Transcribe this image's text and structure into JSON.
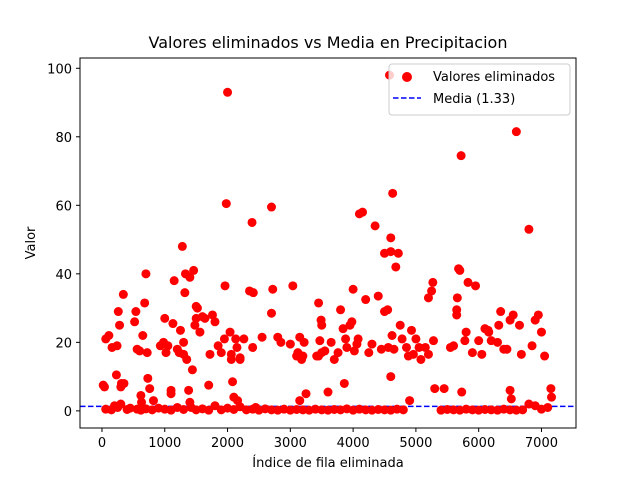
{
  "chart_data": {
    "type": "scatter",
    "title": "Valores eliminados vs Media en Precipitacion",
    "xlabel": "Índice de fila eliminada",
    "ylabel": "Valor",
    "xlim": [
      -350,
      7550
    ],
    "ylim": [
      -5,
      103
    ],
    "xticks": [
      0,
      1000,
      2000,
      3000,
      4000,
      5000,
      6000,
      7000
    ],
    "yticks": [
      0,
      20,
      40,
      60,
      80,
      100
    ],
    "grid": false,
    "legend_position": "top-right",
    "colors": {
      "points": "#ff0000",
      "mean_line": "#0000ff"
    },
    "series": [
      {
        "name": "Valores eliminados",
        "marker": "circle",
        "points": [
          [
            20,
            7.5
          ],
          [
            40,
            7
          ],
          [
            60,
            21
          ],
          [
            110,
            22
          ],
          [
            160,
            18.5
          ],
          [
            230,
            10.5
          ],
          [
            260,
            29
          ],
          [
            280,
            25
          ],
          [
            240,
            19
          ],
          [
            300,
            7
          ],
          [
            310,
            8
          ],
          [
            340,
            34
          ],
          [
            350,
            8
          ],
          [
            60,
            0.5
          ],
          [
            150,
            0.3
          ],
          [
            200,
            1.5
          ],
          [
            250,
            1.0
          ],
          [
            300,
            2.0
          ],
          [
            400,
            0.4
          ],
          [
            450,
            0.8
          ],
          [
            520,
            26
          ],
          [
            540,
            29
          ],
          [
            560,
            18
          ],
          [
            600,
            17.5
          ],
          [
            620,
            4.5
          ],
          [
            630,
            2.5
          ],
          [
            650,
            22
          ],
          [
            680,
            31.5
          ],
          [
            700,
            40
          ],
          [
            720,
            17
          ],
          [
            730,
            9.5
          ],
          [
            760,
            6.5
          ],
          [
            820,
            3
          ],
          [
            560,
            0.5
          ],
          [
            620,
            0.2
          ],
          [
            700,
            0.6
          ],
          [
            800,
            0.3
          ],
          [
            900,
            0.8
          ],
          [
            930,
            19
          ],
          [
            980,
            20
          ],
          [
            1000,
            27
          ],
          [
            1020,
            17
          ],
          [
            1050,
            19
          ],
          [
            1100,
            5
          ],
          [
            1100,
            6
          ],
          [
            1150,
            38
          ],
          [
            1130,
            25.5
          ],
          [
            1200,
            18
          ],
          [
            1230,
            17
          ],
          [
            1250,
            23.5
          ],
          [
            1280,
            48
          ],
          [
            1300,
            20
          ],
          [
            1300,
            16.5
          ],
          [
            1330,
            40
          ],
          [
            1320,
            34.5
          ],
          [
            1350,
            15
          ],
          [
            1380,
            6
          ],
          [
            1400,
            39
          ],
          [
            1420,
            1
          ],
          [
            1440,
            12
          ],
          [
            1460,
            41
          ],
          [
            1480,
            25
          ],
          [
            1500,
            27
          ],
          [
            1500,
            30.5
          ],
          [
            1520,
            30
          ],
          [
            1560,
            23
          ],
          [
            1600,
            27.5
          ],
          [
            1640,
            27
          ],
          [
            1700,
            7.5
          ],
          [
            1720,
            16.5
          ],
          [
            1760,
            28
          ],
          [
            1800,
            26
          ],
          [
            1850,
            19
          ],
          [
            1900,
            17
          ],
          [
            1950,
            21
          ],
          [
            1960,
            36.5
          ],
          [
            1980,
            60.5
          ],
          [
            2000,
            93
          ],
          [
            2040,
            23
          ],
          [
            2060,
            15
          ],
          [
            2060,
            16.5
          ],
          [
            2080,
            8.5
          ],
          [
            2100,
            4
          ],
          [
            2130,
            21
          ],
          [
            2150,
            18.5
          ],
          [
            2160,
            3
          ],
          [
            2200,
            15.5
          ],
          [
            2200,
            15
          ],
          [
            2260,
            21
          ],
          [
            2350,
            35
          ],
          [
            2390,
            55
          ],
          [
            2410,
            34.5
          ],
          [
            2400,
            18.5
          ],
          [
            2450,
            1
          ],
          [
            2550,
            21.5
          ],
          [
            2700,
            59.5
          ],
          [
            2720,
            35.5
          ],
          [
            2700,
            28.5
          ],
          [
            2800,
            21.5
          ],
          [
            2850,
            20
          ],
          [
            3000,
            19.5
          ],
          [
            3040,
            36.5
          ],
          [
            3100,
            16
          ],
          [
            3120,
            17
          ],
          [
            3150,
            21.5
          ],
          [
            3180,
            15
          ],
          [
            3200,
            16
          ],
          [
            3220,
            20
          ],
          [
            3250,
            5
          ],
          [
            3150,
            3
          ],
          [
            3450,
            31.5
          ],
          [
            3470,
            20.5
          ],
          [
            3490,
            26.5
          ],
          [
            3500,
            25
          ],
          [
            3420,
            16
          ],
          [
            3450,
            16
          ],
          [
            3500,
            17
          ],
          [
            3550,
            17.5
          ],
          [
            3600,
            5.5
          ],
          [
            3650,
            20
          ],
          [
            3700,
            15
          ],
          [
            3760,
            17
          ],
          [
            3800,
            29.5
          ],
          [
            3840,
            24
          ],
          [
            3860,
            8
          ],
          [
            3880,
            21
          ],
          [
            3900,
            18.5
          ],
          [
            3950,
            25
          ],
          [
            3980,
            26
          ],
          [
            4000,
            35.5
          ],
          [
            4020,
            17.5
          ],
          [
            4060,
            19.5
          ],
          [
            4080,
            21
          ],
          [
            4100,
            57.5
          ],
          [
            4150,
            58
          ],
          [
            4200,
            32.5
          ],
          [
            4250,
            17
          ],
          [
            4300,
            19.5
          ],
          [
            4350,
            54
          ],
          [
            4400,
            33.5
          ],
          [
            4450,
            18
          ],
          [
            4500,
            29
          ],
          [
            4500,
            46
          ],
          [
            4550,
            29.5
          ],
          [
            4560,
            18.5
          ],
          [
            4600,
            46.5
          ],
          [
            4600,
            10
          ],
          [
            4580,
            98
          ],
          [
            4630,
            63.5
          ],
          [
            4600,
            50.5
          ],
          [
            4620,
            22
          ],
          [
            4650,
            18
          ],
          [
            4680,
            42
          ],
          [
            4720,
            46
          ],
          [
            4750,
            25
          ],
          [
            4780,
            21
          ],
          [
            4850,
            18.5
          ],
          [
            4880,
            16
          ],
          [
            4930,
            23.5
          ],
          [
            4960,
            16.5
          ],
          [
            5000,
            21
          ],
          [
            5050,
            18.5
          ],
          [
            5080,
            15
          ],
          [
            4900,
            3
          ],
          [
            5150,
            18.5
          ],
          [
            5200,
            16.5
          ],
          [
            5200,
            33
          ],
          [
            5250,
            35
          ],
          [
            5270,
            37.5
          ],
          [
            5280,
            20.5
          ],
          [
            5300,
            6.5
          ],
          [
            5450,
            6.5
          ],
          [
            5550,
            18.5
          ],
          [
            5600,
            19
          ],
          [
            5650,
            28
          ],
          [
            5650,
            29.5
          ],
          [
            5660,
            33
          ],
          [
            5680,
            41.5
          ],
          [
            5700,
            41
          ],
          [
            5720,
            74.5
          ],
          [
            5730,
            5.5
          ],
          [
            5780,
            20.5
          ],
          [
            5800,
            23
          ],
          [
            5830,
            37.5
          ],
          [
            5900,
            17
          ],
          [
            5950,
            36.5
          ],
          [
            6000,
            20.5
          ],
          [
            6050,
            16.5
          ],
          [
            6100,
            24
          ],
          [
            6150,
            23.5
          ],
          [
            6200,
            20.5
          ],
          [
            6160,
            23
          ],
          [
            6300,
            20
          ],
          [
            6320,
            25
          ],
          [
            6350,
            29
          ],
          [
            6400,
            18
          ],
          [
            6450,
            18
          ],
          [
            6500,
            26.5
          ],
          [
            6520,
            3.5
          ],
          [
            6550,
            28
          ],
          [
            6500,
            6
          ],
          [
            6600,
            81.5
          ],
          [
            6650,
            25
          ],
          [
            6680,
            16.5
          ],
          [
            6800,
            53
          ],
          [
            6850,
            19
          ],
          [
            6900,
            26.5
          ],
          [
            6950,
            28
          ],
          [
            7000,
            23
          ],
          [
            7050,
            16
          ],
          [
            7150,
            6.5
          ],
          [
            7160,
            4
          ],
          [
            6800,
            2
          ],
          [
            6900,
            1.5
          ],
          [
            7000,
            0.5
          ],
          [
            7100,
            1
          ],
          [
            6700,
            0.3
          ],
          [
            1000,
            0.5
          ],
          [
            1100,
            0.2
          ],
          [
            1200,
            1.0
          ],
          [
            1300,
            0.4
          ],
          [
            1400,
            2.5
          ],
          [
            1500,
            0.3
          ],
          [
            1600,
            0.6
          ],
          [
            1700,
            0.2
          ],
          [
            1800,
            1.5
          ],
          [
            1900,
            0.3
          ],
          [
            2000,
            0.8
          ],
          [
            2100,
            0.4
          ],
          [
            2200,
            1.2
          ],
          [
            2300,
            0.3
          ],
          [
            2400,
            0.5
          ],
          [
            2500,
            0.2
          ],
          [
            2600,
            0.6
          ],
          [
            2700,
            0.3
          ],
          [
            2800,
            0.2
          ],
          [
            2900,
            0.5
          ],
          [
            3000,
            0.2
          ],
          [
            3100,
            0.4
          ],
          [
            3200,
            0.3
          ],
          [
            3300,
            0.2
          ],
          [
            3400,
            0.5
          ],
          [
            3500,
            0.3
          ],
          [
            3600,
            0.2
          ],
          [
            3700,
            0.4
          ],
          [
            3800,
            0.3
          ],
          [
            3900,
            0.6
          ],
          [
            4000,
            0.2
          ],
          [
            4100,
            0.5
          ],
          [
            4200,
            0.3
          ],
          [
            4300,
            0.2
          ],
          [
            4400,
            0.4
          ],
          [
            4500,
            0.3
          ],
          [
            4600,
            0.2
          ],
          [
            4700,
            0.5
          ],
          [
            4800,
            0.3
          ],
          [
            5400,
            0.2
          ],
          [
            5500,
            0.4
          ],
          [
            5600,
            0.3
          ],
          [
            5700,
            0.2
          ],
          [
            5800,
            0.5
          ],
          [
            5900,
            0.3
          ],
          [
            6000,
            0.2
          ],
          [
            6100,
            0.4
          ],
          [
            6200,
            0.3
          ],
          [
            6300,
            0.2
          ],
          [
            6400,
            0.5
          ],
          [
            6500,
            0.3
          ],
          [
            6600,
            0.2
          ]
        ]
      },
      {
        "name": "Media (1.33)",
        "type": "hline",
        "style": "dashed",
        "y": 1.33
      }
    ]
  }
}
